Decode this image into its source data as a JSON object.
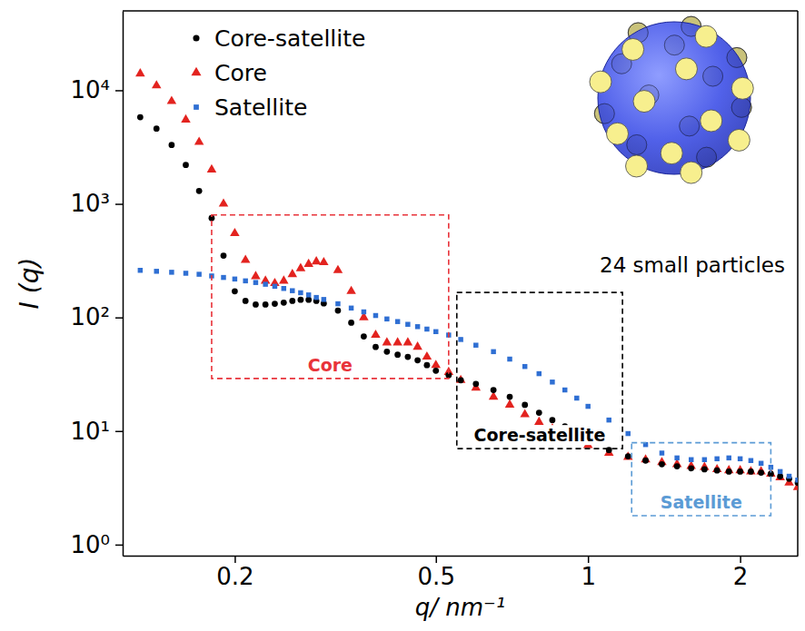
{
  "chart_data": {
    "type": "scatter",
    "x_label": "q/ nm⁻¹",
    "y_label": "I (q)",
    "log": true,
    "legend": "upper left",
    "xlim": [
      0.12,
      2.6
    ],
    "ylim": [
      0.8,
      50000
    ],
    "xticks": [
      0.2,
      0.5,
      1,
      2
    ],
    "yticks": [
      {
        "value": 1,
        "label": "10⁰"
      },
      {
        "value": 10,
        "label": "10¹"
      },
      {
        "value": 100,
        "label": "10²"
      },
      {
        "value": 1000,
        "label": "10³"
      },
      {
        "value": 10000,
        "label": "10⁴"
      }
    ],
    "x": [
      0.13,
      0.14,
      0.15,
      0.16,
      0.17,
      0.18,
      0.19,
      0.2,
      0.21,
      0.22,
      0.23,
      0.24,
      0.25,
      0.26,
      0.27,
      0.28,
      0.29,
      0.3,
      0.32,
      0.34,
      0.36,
      0.38,
      0.4,
      0.42,
      0.44,
      0.46,
      0.48,
      0.5,
      0.53,
      0.56,
      0.6,
      0.65,
      0.7,
      0.75,
      0.8,
      0.85,
      0.9,
      0.95,
      1.0,
      1.1,
      1.2,
      1.3,
      1.4,
      1.5,
      1.6,
      1.7,
      1.8,
      1.9,
      2.0,
      2.1,
      2.2,
      2.3,
      2.4,
      2.5,
      2.6
    ],
    "series": [
      {
        "name": "Core-satellite",
        "color": "#000000",
        "marker": "circle",
        "values": [
          5800,
          4600,
          3300,
          2200,
          1300,
          750,
          350,
          170,
          140,
          130,
          130,
          132,
          135,
          140,
          143,
          143,
          140,
          133,
          115,
          90,
          68,
          55,
          50,
          47,
          45,
          42,
          38,
          34,
          31,
          28,
          26,
          23,
          20,
          17,
          14.5,
          12.5,
          11,
          9.5,
          8.3,
          6.8,
          6.0,
          5.5,
          5.1,
          4.9,
          4.7,
          4.6,
          4.5,
          4.4,
          4.4,
          4.4,
          4.3,
          4.2,
          4.0,
          3.8,
          3.5
        ]
      },
      {
        "name": "Core",
        "color": "#e3231f",
        "marker": "triangle",
        "values": [
          14000,
          11000,
          8000,
          5500,
          3500,
          2000,
          1000,
          550,
          320,
          230,
          210,
          200,
          210,
          240,
          270,
          295,
          310,
          305,
          260,
          170,
          100,
          70,
          60,
          60,
          60,
          55,
          45,
          38,
          33,
          28,
          24,
          20,
          17,
          14,
          12,
          10.5,
          9.2,
          8.2,
          7.5,
          6.4,
          5.9,
          5.6,
          5.3,
          5.1,
          4.9,
          4.8,
          4.6,
          4.5,
          4.5,
          4.4,
          4.4,
          4.2,
          3.9,
          3.5,
          3.2
        ]
      },
      {
        "name": "Satellite",
        "color": "#2f6fd3",
        "marker": "square",
        "values": [
          260,
          255,
          250,
          245,
          240,
          232,
          225,
          218,
          210,
          203,
          196,
          188,
          180,
          172,
          165,
          158,
          150,
          144,
          132,
          121,
          112,
          104,
          97,
          92,
          87,
          83,
          79,
          75,
          70,
          64,
          57,
          50,
          43,
          37,
          32,
          27,
          23,
          19.5,
          16.5,
          12.5,
          9.5,
          7.6,
          6.4,
          5.8,
          5.6,
          5.6,
          5.7,
          5.8,
          5.7,
          5.5,
          5.2,
          4.8,
          4.4,
          4.0,
          3.7
        ]
      }
    ],
    "annotations": [
      {
        "text": "Core",
        "color": "#e8333a",
        "x": [
          0.18,
          0.53
        ],
        "y": [
          29,
          800
        ]
      },
      {
        "text": "Core-satellite",
        "color": "#000000",
        "x": [
          0.55,
          1.17
        ],
        "y": [
          7,
          166
        ]
      },
      {
        "text": "Satellite",
        "color": "#5b9bd5",
        "x": [
          1.22,
          2.3
        ],
        "y": [
          1.8,
          7.9
        ]
      },
      {
        "text": "24 small particles",
        "color": "#000000"
      }
    ]
  }
}
